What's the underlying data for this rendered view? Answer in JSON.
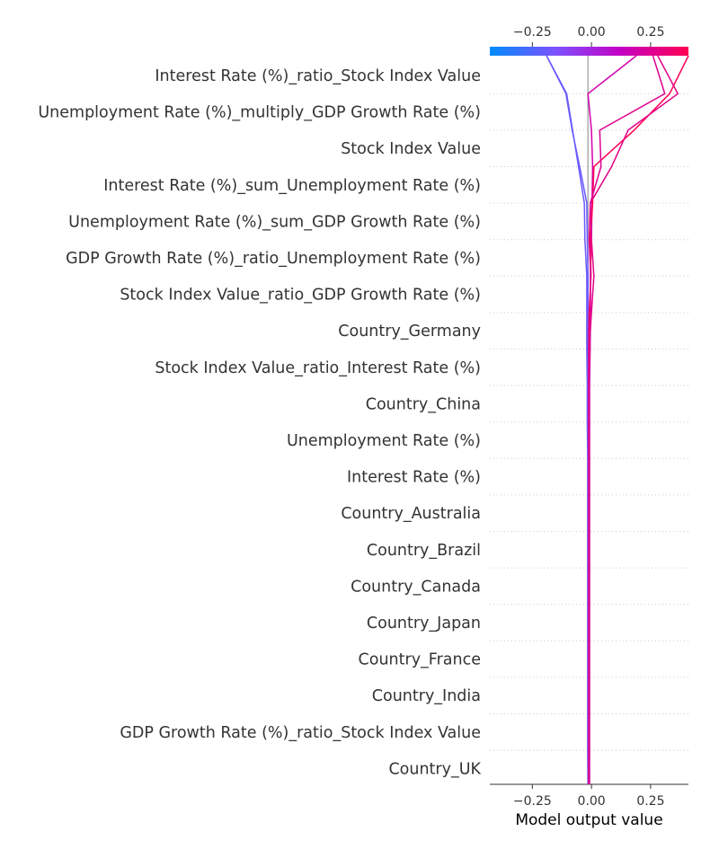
{
  "chart_data": {
    "type": "line",
    "title": "",
    "xlabel": "Model output value",
    "ylabel": "",
    "xlim": [
      -0.43,
      0.41
    ],
    "base_value": -0.015,
    "x_ticks": [
      -0.25,
      0.0,
      0.25
    ],
    "x_tick_labels": [
      "−0.25",
      "0.00",
      "0.25"
    ],
    "colorbar": {
      "colors": [
        "#008bfb",
        "#7c52ff",
        "#c400c4",
        "#ff0052"
      ]
    },
    "grid": "dotted horizontal",
    "features": [
      "Interest Rate (%)_ratio_Stock Index Value",
      "Unemployment Rate (%)_multiply_GDP Growth Rate (%)",
      "Stock Index Value",
      "Interest Rate (%)_sum_Unemployment Rate (%)",
      "Unemployment Rate (%)_sum_GDP Growth Rate (%)",
      "GDP Growth Rate (%)_ratio_Unemployment Rate (%)",
      "Stock Index Value_ratio_GDP Growth Rate (%)",
      "Country_Germany",
      "Stock Index Value_ratio_Interest Rate (%)",
      "Country_China",
      "Unemployment Rate (%)",
      "Interest Rate (%)",
      "Country_Australia",
      "Country_Brazil",
      "Country_Canada",
      "Country_Japan",
      "Country_France",
      "Country_India",
      "GDP Growth Rate (%)_ratio_Stock Index Value",
      "Country_UK"
    ],
    "series": [
      {
        "final": -0.19,
        "path": [
          -0.19,
          -0.105,
          -0.08,
          -0.055,
          -0.03,
          -0.028,
          -0.02,
          -0.02,
          -0.02,
          -0.018,
          -0.018,
          -0.016,
          -0.016,
          -0.016,
          -0.016,
          -0.016,
          -0.016,
          -0.016,
          -0.016,
          -0.016,
          -0.015
        ]
      },
      {
        "final": -0.19,
        "path": [
          -0.19,
          -0.108,
          -0.082,
          -0.05,
          -0.02,
          -0.018,
          -0.015,
          -0.015,
          -0.015,
          -0.015,
          -0.015,
          -0.015,
          -0.015,
          -0.015,
          -0.015,
          -0.015,
          -0.015,
          -0.015,
          -0.015,
          -0.015,
          -0.015
        ]
      },
      {
        "final": 0.19,
        "path": [
          0.19,
          -0.015,
          0.0,
          0.005,
          0.002,
          0.0,
          -0.005,
          -0.004,
          -0.006,
          -0.008,
          -0.008,
          -0.008,
          -0.008,
          -0.008,
          -0.008,
          -0.008,
          -0.008,
          -0.008,
          -0.008,
          -0.008,
          -0.008
        ]
      },
      {
        "final": 0.41,
        "path": [
          0.41,
          0.33,
          0.18,
          0.01,
          0.005,
          -0.005,
          -0.002,
          -0.01,
          -0.012,
          -0.012,
          -0.012,
          -0.012,
          -0.012,
          -0.012,
          -0.012,
          -0.012,
          -0.012,
          -0.012,
          -0.012,
          -0.012,
          -0.012
        ]
      },
      {
        "final": 0.28,
        "path": [
          0.28,
          0.365,
          0.155,
          0.085,
          -0.005,
          0.0,
          0.01,
          0.0,
          -0.01,
          -0.01,
          -0.01,
          -0.01,
          -0.01,
          -0.01,
          -0.01,
          -0.01,
          -0.01,
          -0.01,
          -0.01,
          -0.01,
          -0.01
        ]
      },
      {
        "final": 0.26,
        "path": [
          0.26,
          0.31,
          0.035,
          0.04,
          -0.005,
          -0.01,
          -0.003,
          -0.006,
          -0.008,
          -0.01,
          -0.01,
          -0.01,
          -0.01,
          -0.01,
          -0.01,
          -0.01,
          -0.01,
          -0.01,
          -0.01,
          -0.01,
          -0.01
        ]
      }
    ]
  }
}
